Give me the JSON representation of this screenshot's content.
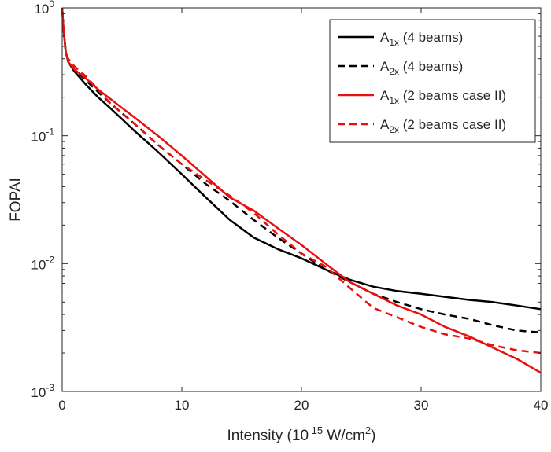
{
  "chart_data": {
    "type": "line",
    "title": "",
    "xlabel": "Intensity (10 15 W/cm 2 )",
    "ylabel": "FOPAI",
    "yscale": "log",
    "xlim": [
      0,
      40
    ],
    "ylim": [
      0.001,
      1
    ],
    "grid": false,
    "legend_position": "top-right",
    "x_ticks": [
      "0",
      "10",
      "20",
      "30",
      "40"
    ],
    "y_ticks": [
      {
        "base": "10",
        "exp": "-3",
        "value": 0.001
      },
      {
        "base": "10",
        "exp": "-2",
        "value": 0.01
      },
      {
        "base": "10",
        "exp": "-1",
        "value": 0.1
      },
      {
        "base": "10",
        "exp": "0",
        "value": 1
      }
    ],
    "series": [
      {
        "name": "A1x (4 beams)",
        "legend_main": "A",
        "legend_sub": "1x",
        "legend_rest": " (4 beams)",
        "color": "#000000",
        "dash": "solid",
        "x": [
          0,
          0.1,
          0.3,
          0.5,
          1,
          2,
          3,
          4,
          5,
          6,
          8,
          10,
          12,
          14,
          16,
          18,
          20,
          22,
          24,
          26,
          28,
          30,
          32,
          34,
          36,
          38,
          40
        ],
        "y": [
          1.0,
          0.7,
          0.45,
          0.38,
          0.32,
          0.25,
          0.2,
          0.165,
          0.135,
          0.11,
          0.075,
          0.05,
          0.033,
          0.022,
          0.016,
          0.013,
          0.011,
          0.009,
          0.0075,
          0.0066,
          0.0061,
          0.0058,
          0.0055,
          0.0052,
          0.005,
          0.0047,
          0.0044
        ]
      },
      {
        "name": "A2x (4 beams)",
        "legend_main": "A",
        "legend_sub": "2x",
        "legend_rest": " (4 beams)",
        "color": "#000000",
        "dash": "dashed",
        "x": [
          0,
          0.1,
          0.3,
          0.5,
          1,
          2,
          3,
          4,
          5,
          6,
          8,
          10,
          12,
          14,
          16,
          18,
          20,
          22,
          24,
          26,
          28,
          30,
          32,
          34,
          36,
          38,
          40
        ],
        "y": [
          1.0,
          0.7,
          0.45,
          0.38,
          0.33,
          0.27,
          0.22,
          0.18,
          0.15,
          0.125,
          0.085,
          0.06,
          0.042,
          0.031,
          0.022,
          0.016,
          0.012,
          0.009,
          0.0072,
          0.0058,
          0.005,
          0.0044,
          0.004,
          0.0037,
          0.0033,
          0.003,
          0.0029
        ]
      },
      {
        "name": "A1x (2 beams case II)",
        "legend_main": "A",
        "legend_sub": "1x",
        "legend_rest": " (2 beams case II)",
        "color": "#e8100f",
        "dash": "solid",
        "x": [
          0,
          0.1,
          0.3,
          0.5,
          1,
          2,
          3,
          4,
          5,
          6,
          8,
          10,
          12,
          14,
          16,
          18,
          20,
          22,
          24,
          26,
          28,
          30,
          32,
          34,
          36,
          38,
          40
        ],
        "y": [
          1.0,
          0.7,
          0.45,
          0.38,
          0.33,
          0.28,
          0.23,
          0.195,
          0.165,
          0.14,
          0.1,
          0.07,
          0.048,
          0.033,
          0.026,
          0.019,
          0.014,
          0.01,
          0.0072,
          0.0058,
          0.0047,
          0.004,
          0.0032,
          0.0027,
          0.0022,
          0.0018,
          0.0014
        ]
      },
      {
        "name": "A2x (2 beams case II)",
        "legend_main": "A",
        "legend_sub": "2x",
        "legend_rest": " (2 beams case II)",
        "color": "#e8100f",
        "dash": "dashed",
        "x": [
          0,
          0.1,
          0.3,
          0.5,
          1,
          2,
          3,
          4,
          5,
          6,
          8,
          10,
          12,
          14,
          16,
          18,
          20,
          22,
          24,
          26,
          28,
          30,
          32,
          34,
          36,
          38,
          40
        ],
        "y": [
          1.0,
          0.7,
          0.45,
          0.4,
          0.35,
          0.29,
          0.23,
          0.18,
          0.15,
          0.125,
          0.085,
          0.06,
          0.045,
          0.034,
          0.025,
          0.017,
          0.012,
          0.0095,
          0.0065,
          0.0045,
          0.0038,
          0.0032,
          0.0028,
          0.0026,
          0.0023,
          0.0021,
          0.002
        ]
      }
    ]
  }
}
